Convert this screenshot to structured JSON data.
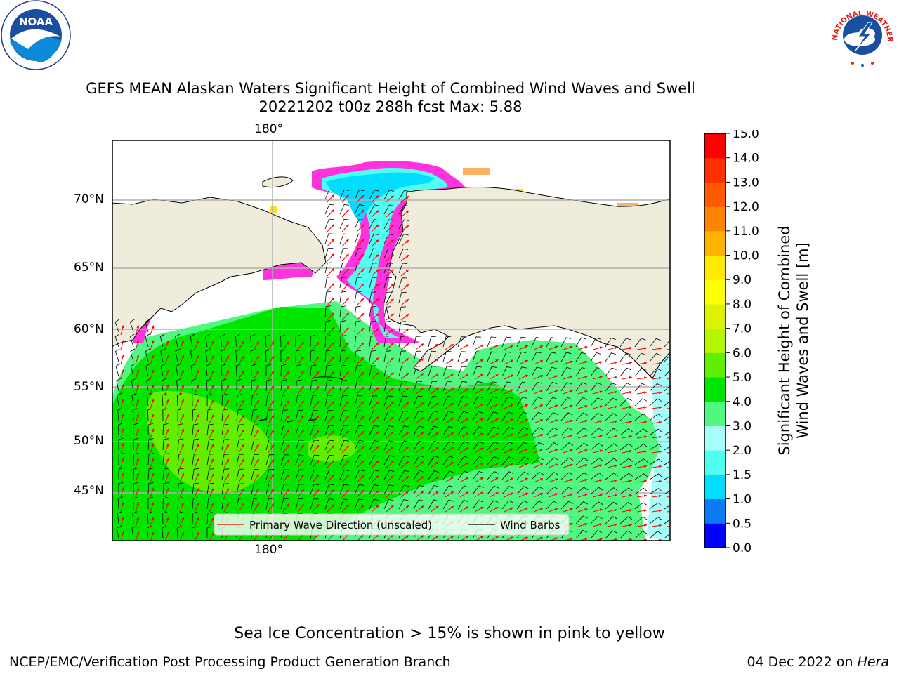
{
  "title": {
    "line1": "GEFS MEAN Alaskan Waters Significant Height of Combined Wind Waves and Swell",
    "line2": "20221202 t00z 288h fcst   Max: 5.88"
  },
  "map": {
    "lon_labels": [
      "180°",
      "180°"
    ],
    "lat_labels": [
      "70°N",
      "65°N",
      "60°N",
      "55°N",
      "50°N",
      "45°N"
    ],
    "colors": {
      "land": "#efecdc",
      "coast": "#000000",
      "grid": "#b0b0b0",
      "ice_pink": "#ff33dd",
      "ice_orange": "#ffb060",
      "ice_yellow": "#ffe020",
      "wave_arrow": "#ff0000",
      "wind_barb": "#000000"
    },
    "legend": {
      "wave_label": "Primary Wave Direction (unscaled)",
      "barb_label": "Wind Barbs"
    }
  },
  "colorbar": {
    "label_line1": "Significant Height of Combined",
    "label_line2": "Wind Waves and Swell [m]",
    "ticks": [
      "0.0",
      "0.5",
      "1.0",
      "1.5",
      "2.0",
      "3.0",
      "4.0",
      "5.0",
      "6.0",
      "7.0",
      "8.0",
      "9.0",
      "10.0",
      "11.0",
      "12.0",
      "13.0",
      "14.0",
      "15.0"
    ],
    "colors": [
      "#0000ff",
      "#0a7af5",
      "#00ddff",
      "#50fff2",
      "#a5fff8",
      "#50f882",
      "#00e600",
      "#60ef00",
      "#b5f500",
      "#dcf200",
      "#ffff00",
      "#ffea00",
      "#ffb400",
      "#ff8500",
      "#ff5a00",
      "#ff3000",
      "#ff0000"
    ]
  },
  "logos": {
    "noaa_text": "NOAA",
    "nws_text": "NATIONAL WEATHER SERVICE"
  },
  "footer": {
    "sea_ice_note": "Sea Ice Concentration > 15% is shown in pink to yellow",
    "credit": "NCEP/EMC/Verification Post Processing Product Generation Branch",
    "date": "04 Dec 2022 on ",
    "machine": "Hera"
  }
}
